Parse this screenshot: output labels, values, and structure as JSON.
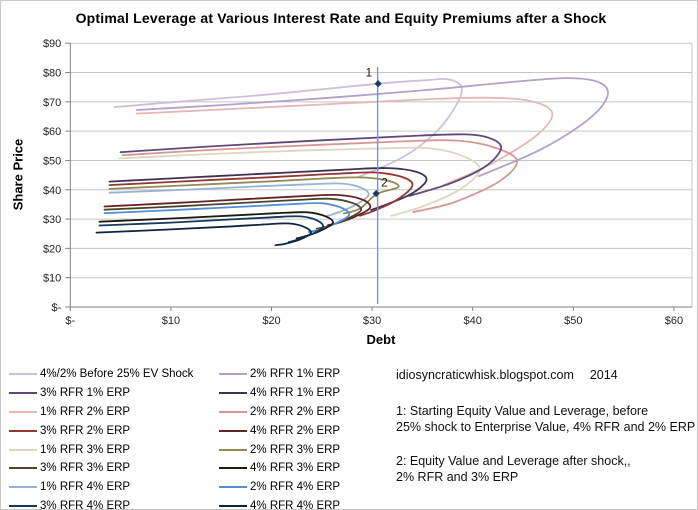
{
  "chart_data": {
    "type": "line",
    "title": "Optimal Leverage at Various Interest Rate and Equity Premiums after a Shock",
    "xlabel": "Debt",
    "ylabel": "Share Price",
    "x_axis": {
      "range": [
        0,
        60
      ],
      "ticks": [
        {
          "value": 0,
          "label": "$-"
        },
        {
          "value": 10,
          "label": "$10"
        },
        {
          "value": 20,
          "label": "$20"
        },
        {
          "value": 30,
          "label": "$30"
        },
        {
          "value": 40,
          "label": "$40"
        },
        {
          "value": 50,
          "label": "$50"
        },
        {
          "value": 60,
          "label": "$60"
        }
      ]
    },
    "y_axis": {
      "range": [
        0,
        90
      ],
      "ticks": [
        {
          "value": 0,
          "label": "$-"
        },
        {
          "value": 10,
          "label": "$10"
        },
        {
          "value": 20,
          "label": "$20"
        },
        {
          "value": 30,
          "label": "$30"
        },
        {
          "value": 40,
          "label": "$40"
        },
        {
          "value": 50,
          "label": "$50"
        },
        {
          "value": 60,
          "label": "$60"
        },
        {
          "value": 70,
          "label": "$70"
        },
        {
          "value": 80,
          "label": "$80"
        },
        {
          "value": 90,
          "label": "$90"
        }
      ]
    },
    "grid": {
      "horizontal": true,
      "vertical": false,
      "color": "#c6c6c6",
      "axis_color": "#808080"
    },
    "series": [
      {
        "name": "4%/2% Before 25% EV Shock",
        "color": "#ccc1d9",
        "points": [
          [
            4.4,
            68.2
          ],
          [
            12,
            70.4
          ],
          [
            20,
            72.6
          ],
          [
            30.6,
            76.2
          ],
          [
            35.5,
            77.4
          ],
          [
            37.5,
            77.7
          ],
          [
            38.9,
            75.0
          ],
          [
            38.3,
            68.5
          ],
          [
            36.3,
            59.5
          ],
          [
            33.0,
            51.0
          ],
          [
            28.6,
            44.3
          ]
        ]
      },
      {
        "name": "2% RFR 1% ERP",
        "color": "#b2a2c7",
        "points": [
          [
            6.6,
            67.2
          ],
          [
            15,
            68.9
          ],
          [
            25,
            71.2
          ],
          [
            35,
            73.9
          ],
          [
            44,
            76.8
          ],
          [
            49.5,
            78.1
          ],
          [
            52.6,
            76.6
          ],
          [
            53.4,
            72.0
          ],
          [
            51.5,
            64.0
          ],
          [
            46.8,
            53.8
          ],
          [
            40.6,
            44.6
          ]
        ]
      },
      {
        "name": "1% RFR 2% ERP",
        "color": "#e5b8b7",
        "points": [
          [
            6.6,
            66.0
          ],
          [
            15,
            67.4
          ],
          [
            25,
            69.1
          ],
          [
            35,
            70.8
          ],
          [
            41,
            71.4
          ],
          [
            45.6,
            70.4
          ],
          [
            47.9,
            66.3
          ],
          [
            46.4,
            58.7
          ],
          [
            41.8,
            48.8
          ],
          [
            37.1,
            41.6
          ]
        ]
      },
      {
        "name": "1% RFR 3% ERP",
        "color": "#ddd8c3",
        "points": [
          [
            4.9,
            50.7
          ],
          [
            14,
            52.2
          ],
          [
            24,
            53.5
          ],
          [
            31,
            54.1
          ],
          [
            35.6,
            54.2
          ],
          [
            39.1,
            51.4
          ],
          [
            40.7,
            46.8
          ],
          [
            38.6,
            39.8
          ],
          [
            35.0,
            34.3
          ],
          [
            31.9,
            31.1
          ]
        ]
      },
      {
        "name": "2% RFR 2% ERP",
        "color": "#d99694",
        "points": [
          [
            5.2,
            51.8
          ],
          [
            14,
            53.6
          ],
          [
            24,
            55.2
          ],
          [
            33,
            56.5
          ],
          [
            38.3,
            56.8
          ],
          [
            42.2,
            54.4
          ],
          [
            44.4,
            49.8
          ],
          [
            42.6,
            42.8
          ],
          [
            38.2,
            35.8
          ],
          [
            34.1,
            32.4
          ]
        ]
      },
      {
        "name": "3% RFR 1% ERP",
        "color": "#5f497a",
        "points": [
          [
            5.0,
            52.8
          ],
          [
            14,
            54.8
          ],
          [
            24,
            56.7
          ],
          [
            33,
            58.2
          ],
          [
            39.3,
            58.9
          ],
          [
            42.0,
            57.2
          ],
          [
            42.8,
            53.8
          ],
          [
            41.2,
            47.8
          ],
          [
            37.8,
            42.2
          ],
          [
            33.7,
            37.9
          ]
        ]
      },
      {
        "name": "4% RFR 1% ERP",
        "color": "#3f3151",
        "points": [
          [
            3.9,
            42.8
          ],
          [
            12,
            44.2
          ],
          [
            20,
            45.6
          ],
          [
            27,
            46.8
          ],
          [
            31.5,
            47.4
          ],
          [
            34.4,
            46.1
          ],
          [
            35.4,
            43.2
          ],
          [
            33.9,
            38.6
          ],
          [
            31.6,
            35.2
          ],
          [
            29.9,
            33.1
          ]
        ]
      },
      {
        "name": "3% RFR 2% ERP",
        "color": "#943634",
        "points": [
          [
            3.9,
            41.6
          ],
          [
            12,
            43.0
          ],
          [
            20,
            44.3
          ],
          [
            26,
            45.4
          ],
          [
            30.3,
            45.9
          ],
          [
            33.1,
            44.2
          ],
          [
            34.0,
            41.3
          ],
          [
            32.4,
            36.4
          ],
          [
            30.3,
            33.0
          ],
          [
            28.8,
            31.1
          ]
        ]
      },
      {
        "name": "2% RFR 3% ERP",
        "color": "#948a54",
        "points": [
          [
            3.9,
            40.3
          ],
          [
            12,
            41.6
          ],
          [
            20,
            42.9
          ],
          [
            25,
            43.8
          ],
          [
            28.8,
            44.2
          ],
          [
            31.6,
            43.1
          ],
          [
            32.6,
            40.9
          ],
          [
            30.5,
            38.6
          ],
          [
            28.8,
            33.6
          ],
          [
            27.2,
            31.9
          ]
        ]
      },
      {
        "name": "1% RFR 4% ERP",
        "color": "#95b3d7",
        "points": [
          [
            3.9,
            39.0
          ],
          [
            12,
            40.1
          ],
          [
            19,
            41.2
          ],
          [
            24,
            41.9
          ],
          [
            27.1,
            42.1
          ],
          [
            29.1,
            40.4
          ],
          [
            29.6,
            37.9
          ],
          [
            28.1,
            34.4
          ],
          [
            26.5,
            32.1
          ],
          [
            25.4,
            30.9
          ]
        ]
      },
      {
        "name": "4% RFR 2% ERP",
        "color": "#632423",
        "points": [
          [
            3.4,
            34.3
          ],
          [
            11,
            35.6
          ],
          [
            18,
            36.9
          ],
          [
            23,
            37.8
          ],
          [
            26.6,
            38.2
          ],
          [
            29.0,
            36.7
          ],
          [
            29.8,
            33.9
          ],
          [
            28.3,
            30.8
          ],
          [
            26.7,
            28.8
          ],
          [
            25.6,
            27.9
          ]
        ]
      },
      {
        "name": "3% RFR 3% ERP",
        "color": "#4a452a",
        "points": [
          [
            3.4,
            33.2
          ],
          [
            11,
            34.4
          ],
          [
            18,
            35.7
          ],
          [
            22.5,
            36.5
          ],
          [
            25.9,
            36.9
          ],
          [
            28.1,
            35.4
          ],
          [
            28.9,
            33.0
          ],
          [
            27.4,
            29.9
          ],
          [
            25.7,
            27.7
          ],
          [
            24.5,
            26.7
          ]
        ]
      },
      {
        "name": "2% RFR 4% ERP",
        "color": "#558ed5",
        "points": [
          [
            3.4,
            32.0
          ],
          [
            11,
            33.2
          ],
          [
            17.5,
            34.3
          ],
          [
            21.5,
            35.0
          ],
          [
            24.9,
            35.4
          ],
          [
            26.9,
            33.9
          ],
          [
            27.7,
            31.4
          ],
          [
            26.3,
            28.4
          ],
          [
            24.7,
            26.4
          ],
          [
            23.7,
            25.6
          ]
        ]
      },
      {
        "name": "4% RFR 3% ERP",
        "color": "#1d1b10",
        "points": [
          [
            2.9,
            29.1
          ],
          [
            10,
            30.2
          ],
          [
            16.5,
            31.3
          ],
          [
            20.5,
            32.0
          ],
          [
            23.6,
            32.3
          ],
          [
            25.4,
            30.9
          ],
          [
            26.1,
            28.7
          ],
          [
            24.8,
            25.9
          ],
          [
            23.4,
            24.2
          ],
          [
            22.5,
            23.4
          ]
        ]
      },
      {
        "name": "3% RFR 4% ERP",
        "color": "#17375d",
        "points": [
          [
            2.9,
            27.8
          ],
          [
            10,
            28.8
          ],
          [
            16,
            29.9
          ],
          [
            20,
            30.6
          ],
          [
            22.9,
            30.9
          ],
          [
            24.6,
            29.4
          ],
          [
            25.1,
            27.2
          ],
          [
            23.9,
            24.7
          ],
          [
            22.5,
            22.9
          ],
          [
            21.7,
            22.1
          ]
        ]
      },
      {
        "name": "4% RFR 4% ERP",
        "color": "#10253e",
        "points": [
          [
            2.6,
            25.4
          ],
          [
            9.5,
            26.4
          ],
          [
            15.5,
            27.4
          ],
          [
            19,
            28.1
          ],
          [
            21.8,
            28.5
          ],
          [
            23.4,
            27.1
          ],
          [
            23.9,
            25.1
          ],
          [
            22.7,
            22.9
          ],
          [
            21.4,
            21.6
          ],
          [
            20.4,
            21.1
          ]
        ]
      }
    ],
    "shock_line": {
      "x": 30.55,
      "color": "#6b9bd2",
      "marker_color": "#1f3864",
      "markers": [
        {
          "label": "1",
          "debt": 30.6,
          "price": 76.2,
          "label_side": "left"
        },
        {
          "label": "2",
          "debt": 30.4,
          "price": 38.7,
          "label_side": "right"
        }
      ]
    },
    "legend_position": "bottom-left"
  },
  "legend": {
    "items": [
      {
        "label": "4%/2% Before 25% EV Shock",
        "color": "#ccc1d9"
      },
      {
        "label": "2% RFR 1% ERP",
        "color": "#b2a2c7"
      },
      {
        "label": "3% RFR 1% ERP",
        "color": "#5f497a"
      },
      {
        "label": "4% RFR 1% ERP",
        "color": "#3f3151"
      },
      {
        "label": "1% RFR 2% ERP",
        "color": "#e5b8b7"
      },
      {
        "label": "2% RFR 2% ERP",
        "color": "#d99694"
      },
      {
        "label": "3% RFR 2% ERP",
        "color": "#943634"
      },
      {
        "label": "4% RFR 2% ERP",
        "color": "#632423"
      },
      {
        "label": "1% RFR 3% ERP",
        "color": "#ddd8c3"
      },
      {
        "label": "2% RFR 3% ERP",
        "color": "#948a54"
      },
      {
        "label": "3% RFR 3% ERP",
        "color": "#4a452a"
      },
      {
        "label": "4% RFR 3% ERP",
        "color": "#1d1b10"
      },
      {
        "label": "1% RFR 4% ERP",
        "color": "#95b3d7"
      },
      {
        "label": "2% RFR 4% ERP",
        "color": "#558ed5"
      },
      {
        "label": "3% RFR 4% ERP",
        "color": "#17375d"
      },
      {
        "label": "4% RFR 4% ERP",
        "color": "#10253e"
      }
    ]
  },
  "annotations": {
    "site": "idiosyncraticwhisk.blogspot.com",
    "year": "2014",
    "note1_line1": "1: Starting Equity Value and Leverage, before",
    "note1_line2": "25% shock to Enterprise Value, 4% RFR and 2% ERP",
    "note2_line1": "2: Equity Value and Leverage after shock,,",
    "note2_line2": "2% RFR and 3% ERP"
  }
}
